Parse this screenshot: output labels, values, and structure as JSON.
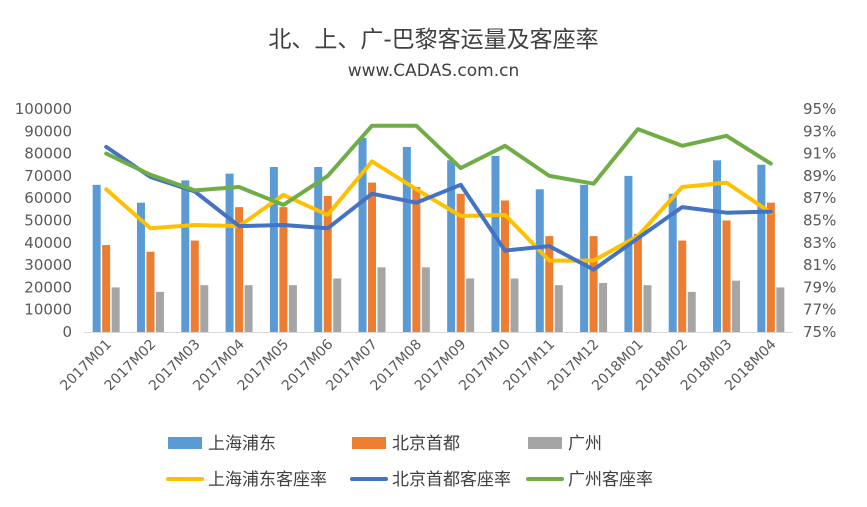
{
  "chart_data": {
    "type": "bar",
    "title": "北、上、广-巴黎客运量及客座率",
    "subtitle": "www.CADAS.com.cn",
    "categories": [
      "2017M01",
      "2017M02",
      "2017M03",
      "2017M04",
      "2017M05",
      "2017M06",
      "2017M07",
      "2017M08",
      "2017M09",
      "2017M10",
      "2017M11",
      "2017M12",
      "2018M01",
      "2018M02",
      "2018M03",
      "2018M04"
    ],
    "left_axis": {
      "min": 0,
      "max": 100000,
      "ticks": [
        "0",
        "10000",
        "20000",
        "30000",
        "40000",
        "50000",
        "60000",
        "70000",
        "80000",
        "90000",
        "100000"
      ]
    },
    "right_axis": {
      "min": 75,
      "max": 95,
      "ticks": [
        "75%",
        "77%",
        "79%",
        "81%",
        "83%",
        "85%",
        "87%",
        "89%",
        "91%",
        "93%",
        "95%"
      ]
    },
    "series": [
      {
        "name": "上海浦东",
        "type": "bar",
        "axis": "left",
        "color": "#5B9BD5",
        "values": [
          66000,
          58000,
          68000,
          71000,
          74000,
          74000,
          87000,
          83000,
          77000,
          79000,
          64000,
          66000,
          70000,
          62000,
          77000,
          75000
        ]
      },
      {
        "name": "北京首都",
        "type": "bar",
        "axis": "left",
        "color": "#ED7D31",
        "values": [
          39000,
          36000,
          41000,
          56000,
          56000,
          61000,
          67000,
          65000,
          62000,
          59000,
          43000,
          43000,
          44000,
          41000,
          50000,
          58000
        ]
      },
      {
        "name": "广州",
        "type": "bar",
        "axis": "left",
        "color": "#A5A5A5",
        "values": [
          20000,
          18000,
          21000,
          21000,
          21000,
          24000,
          29000,
          29000,
          24000,
          24000,
          21000,
          22000,
          21000,
          18000,
          23000,
          20000
        ]
      },
      {
        "name": "上海浦东客座率",
        "type": "line",
        "axis": "right",
        "color": "#FFC000",
        "values": [
          87.8,
          84.3,
          84.6,
          84.5,
          87.3,
          85.5,
          90.3,
          87.8,
          85.4,
          85.5,
          81.4,
          81.4,
          83.6,
          88.0,
          88.4,
          85.7
        ]
      },
      {
        "name": "北京首都客座率",
        "type": "line",
        "axis": "right",
        "color": "#4472C4",
        "values": [
          91.6,
          88.9,
          87.6,
          84.5,
          84.6,
          84.3,
          87.4,
          86.6,
          88.2,
          82.3,
          82.7,
          80.6,
          83.4,
          86.2,
          85.7,
          85.8
        ]
      },
      {
        "name": "广州客座率",
        "type": "line",
        "axis": "right",
        "color": "#70AD47",
        "values": [
          91.0,
          89.1,
          87.7,
          88.0,
          86.4,
          89.0,
          93.5,
          93.5,
          89.7,
          91.7,
          89.0,
          88.3,
          93.2,
          91.7,
          92.6,
          90.1
        ]
      }
    ],
    "grid": false,
    "legend": "bottom"
  }
}
